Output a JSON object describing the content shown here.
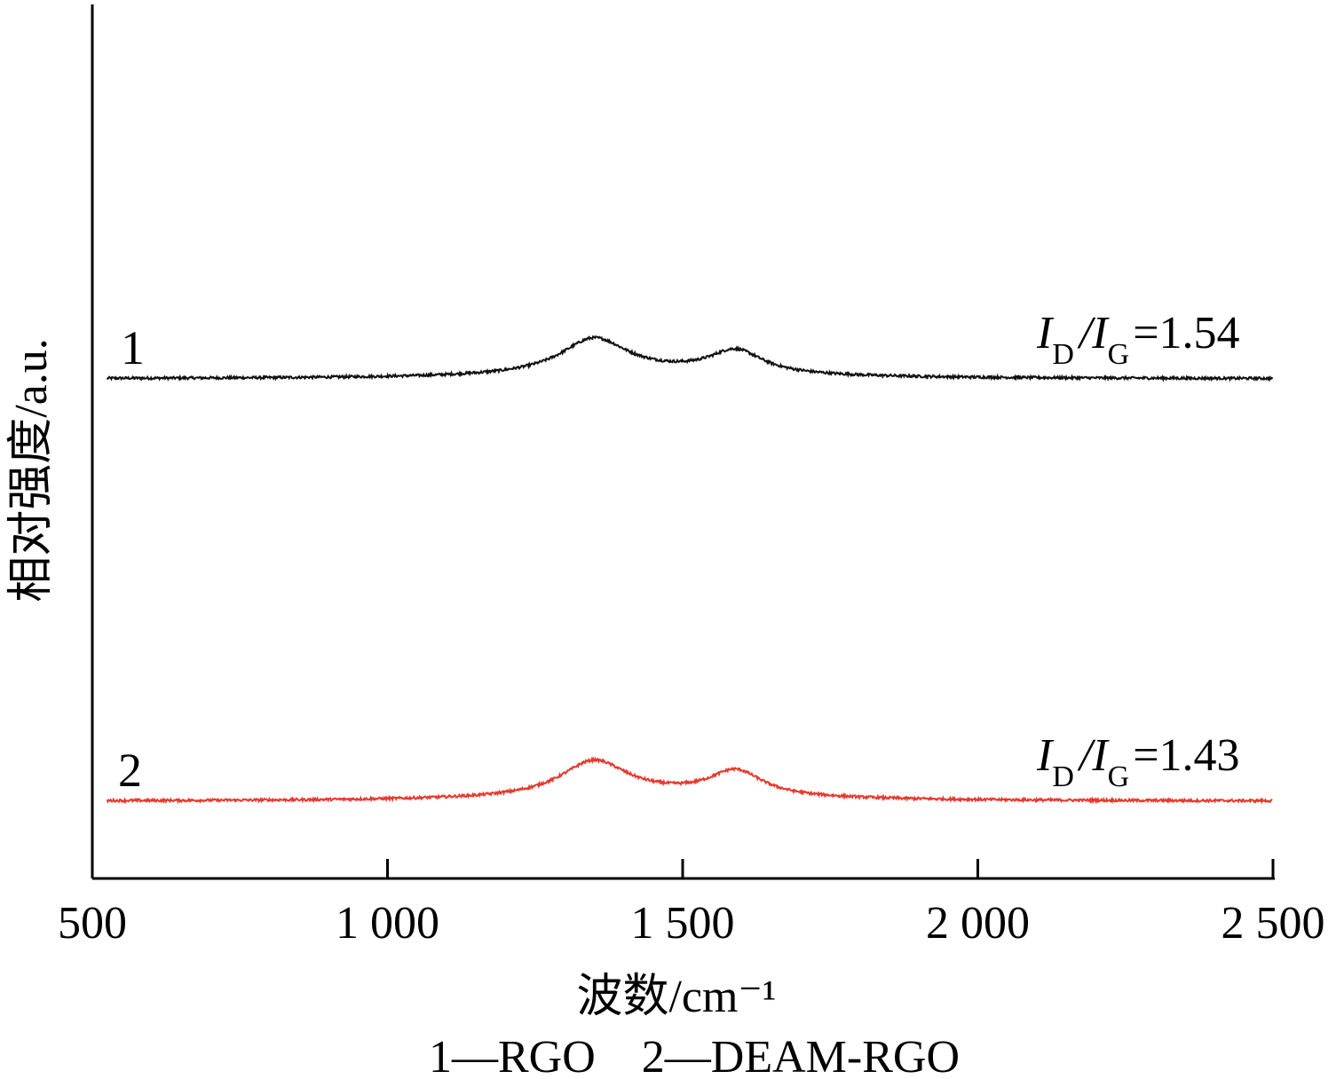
{
  "chart_data": {
    "type": "line",
    "xlabel": "波数/cm⁻¹",
    "ylabel": "相对强度/a.u.",
    "xlim": [
      500,
      2500
    ],
    "xticks": [
      "500",
      "1 000",
      "1 500",
      "2 000",
      "2 500"
    ],
    "xtick_values": [
      500,
      1000,
      1500,
      2000,
      2500
    ],
    "grid": false,
    "peaks": [
      1350,
      1590
    ],
    "series": [
      {
        "label": "1",
        "color": "#111111",
        "baseline": 1.0,
        "d_peak_height": 0.085,
        "g_peak_height": 0.055,
        "ratio_prefix": "I",
        "ratio_sub1": "D",
        "ratio_mid": "/I",
        "ratio_sub2": "G",
        "ratio_value": "=1.54"
      },
      {
        "label": "2",
        "color": "#e8392d",
        "baseline": 0.0,
        "d_peak_height": 0.085,
        "g_peak_height": 0.06,
        "ratio_prefix": "I",
        "ratio_sub1": "D",
        "ratio_mid": "/I",
        "ratio_sub2": "G",
        "ratio_value": "=1.43"
      }
    ],
    "caption": "1—RGO    2—DEAM-RGO"
  }
}
